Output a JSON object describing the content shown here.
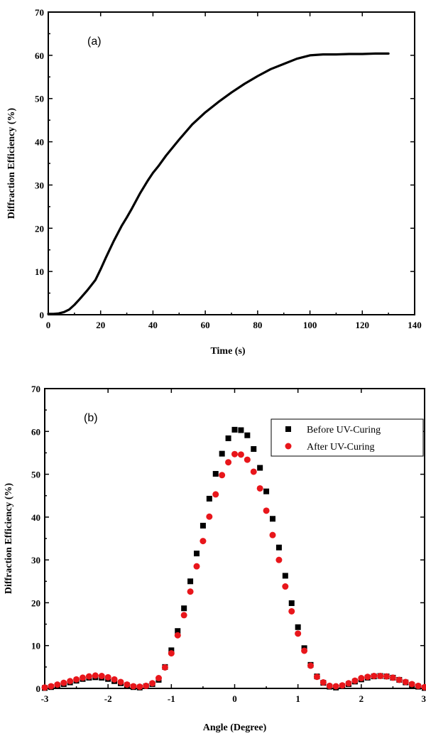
{
  "chart_data": [
    {
      "type": "line",
      "panel_label": "(a)",
      "xlabel": "Time (s)",
      "ylabel": "Diffraction Efficiency (%)",
      "xlim": [
        0,
        140
      ],
      "ylim": [
        0,
        70
      ],
      "xticks": [
        0,
        20,
        40,
        60,
        80,
        100,
        120,
        140
      ],
      "yticks": [
        0,
        10,
        20,
        30,
        40,
        50,
        60,
        70
      ],
      "series": [
        {
          "color": "#000000",
          "x": [
            0,
            2,
            4,
            6,
            8,
            10,
            12,
            15,
            18,
            20,
            22,
            25,
            28,
            30,
            32,
            35,
            38,
            40,
            42,
            45,
            50,
            55,
            60,
            65,
            70,
            75,
            80,
            85,
            90,
            95,
            100,
            105,
            110,
            115,
            120,
            125,
            130
          ],
          "y": [
            0.2,
            0.2,
            0.3,
            0.6,
            1.2,
            2.3,
            3.6,
            5.7,
            8.0,
            10.5,
            13.2,
            17.0,
            20.5,
            22.5,
            24.6,
            28.0,
            31.0,
            32.8,
            34.3,
            36.8,
            40.5,
            44.0,
            46.8,
            49.2,
            51.4,
            53.4,
            55.2,
            56.8,
            58.0,
            59.2,
            60.0,
            60.2,
            60.2,
            60.3,
            60.3,
            60.4,
            60.4
          ]
        }
      ]
    },
    {
      "type": "scatter",
      "panel_label": "(b)",
      "xlabel": "Angle (Degree)",
      "ylabel": "Diffraction Efficiency (%)",
      "xlim": [
        -3,
        3
      ],
      "ylim": [
        0,
        70
      ],
      "xticks": [
        -3,
        -2,
        -1,
        0,
        1,
        2,
        3
      ],
      "yticks": [
        0,
        10,
        20,
        30,
        40,
        50,
        60,
        70
      ],
      "legend_position": "top-right",
      "series": [
        {
          "name": "Before UV-Curing",
          "marker": "square",
          "color": "#000000",
          "x": [
            -3.0,
            -2.9,
            -2.8,
            -2.7,
            -2.6,
            -2.5,
            -2.4,
            -2.3,
            -2.2,
            -2.1,
            -2.0,
            -1.9,
            -1.8,
            -1.7,
            -1.6,
            -1.5,
            -1.4,
            -1.3,
            -1.2,
            -1.1,
            -1.0,
            -0.9,
            -0.8,
            -0.7,
            -0.6,
            -0.5,
            -0.4,
            -0.3,
            -0.2,
            -0.1,
            0.0,
            0.1,
            0.2,
            0.3,
            0.4,
            0.5,
            0.6,
            0.7,
            0.8,
            0.9,
            1.0,
            1.1,
            1.2,
            1.3,
            1.4,
            1.5,
            1.6,
            1.7,
            1.8,
            1.9,
            2.0,
            2.1,
            2.2,
            2.3,
            2.4,
            2.5,
            2.6,
            2.7,
            2.8,
            2.9,
            3.0
          ],
          "y": [
            0.1,
            0.3,
            0.6,
            1.0,
            1.4,
            1.8,
            2.2,
            2.5,
            2.6,
            2.5,
            2.2,
            1.7,
            1.2,
            0.7,
            0.3,
            0.2,
            0.5,
            1.0,
            2.0,
            5.0,
            8.9,
            13.4,
            18.7,
            25.0,
            31.5,
            38.0,
            44.3,
            50.1,
            54.8,
            58.4,
            60.4,
            60.3,
            59.1,
            55.9,
            51.5,
            46.0,
            39.6,
            32.9,
            26.3,
            19.9,
            14.3,
            9.4,
            5.5,
            2.8,
            1.3,
            0.4,
            0.2,
            0.5,
            1.0,
            1.6,
            2.1,
            2.5,
            2.8,
            2.9,
            2.8,
            2.5,
            2.0,
            1.4,
            0.8,
            0.4,
            0.1
          ]
        },
        {
          "name": "After UV-Curing",
          "marker": "circle",
          "color": "#e8161b",
          "x": [
            -3.0,
            -2.9,
            -2.8,
            -2.7,
            -2.6,
            -2.5,
            -2.4,
            -2.3,
            -2.2,
            -2.1,
            -2.0,
            -1.9,
            -1.8,
            -1.7,
            -1.6,
            -1.5,
            -1.4,
            -1.3,
            -1.2,
            -1.1,
            -1.0,
            -0.9,
            -0.8,
            -0.7,
            -0.6,
            -0.5,
            -0.4,
            -0.3,
            -0.2,
            -0.1,
            0.0,
            0.1,
            0.2,
            0.3,
            0.4,
            0.5,
            0.6,
            0.7,
            0.8,
            0.9,
            1.0,
            1.1,
            1.2,
            1.3,
            1.4,
            1.5,
            1.6,
            1.7,
            1.8,
            1.9,
            2.0,
            2.1,
            2.2,
            2.3,
            2.4,
            2.5,
            2.6,
            2.7,
            2.8,
            2.9,
            3.0
          ],
          "y": [
            0.2,
            0.5,
            0.9,
            1.3,
            1.7,
            2.1,
            2.5,
            2.8,
            3.0,
            2.9,
            2.6,
            2.1,
            1.5,
            0.9,
            0.5,
            0.4,
            0.6,
            1.2,
            2.4,
            4.9,
            8.2,
            12.4,
            17.1,
            22.6,
            28.5,
            34.4,
            40.1,
            45.3,
            49.8,
            52.8,
            54.7,
            54.6,
            53.4,
            50.6,
            46.7,
            41.5,
            35.8,
            30.0,
            23.8,
            18.0,
            12.8,
            8.8,
            5.3,
            2.7,
            1.4,
            0.6,
            0.5,
            0.7,
            1.2,
            1.8,
            2.4,
            2.7,
            2.9,
            2.9,
            2.8,
            2.5,
            2.0,
            1.5,
            1.0,
            0.6,
            0.3
          ]
        }
      ]
    }
  ]
}
